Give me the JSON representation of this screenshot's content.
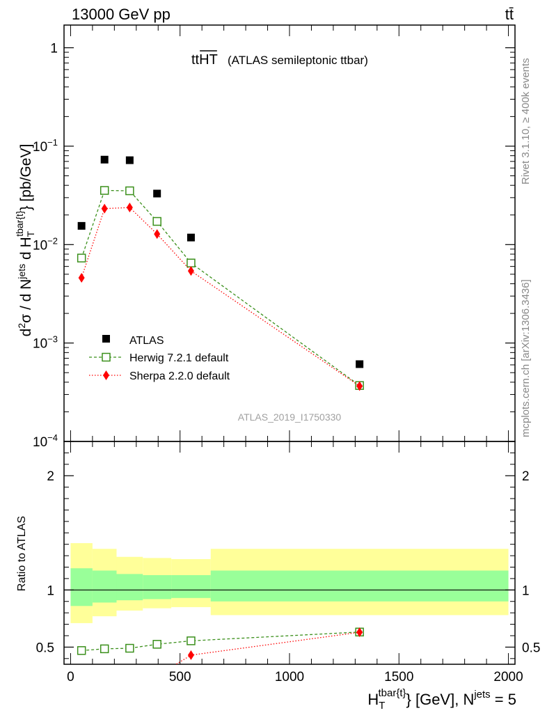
{
  "header": {
    "left": "13000 GeV pp",
    "right": "tt̄"
  },
  "side_labels": {
    "rivet": "Rivet 3.1.10, ≥ 400k events",
    "mcplots": "mcplots.cern.ch [arXiv:1306.3436]"
  },
  "colors": {
    "atlas": "#000000",
    "herwig": "#3a8f1a",
    "sherpa": "#ff0000",
    "band_outer": "#ffff99",
    "band_inner": "#99ff99",
    "ref_line": "#000000",
    "watermark": "#a0a0a0"
  },
  "chart_data": [
    {
      "type": "scatter",
      "panel": "main",
      "title_main": "tt",
      "title_over": "HT",
      "title_sub": "(ATLAS semileptonic ttbar)",
      "watermark": "ATLAS_2019_I1750330",
      "ylabel": "d²σ / d Nʲᵉᵗˢ d H_T^{tbar{t}} [pb/GeV]",
      "yscale": "log",
      "ylim": [
        0.0001,
        1.7
      ],
      "xlim": [
        -30,
        2030
      ],
      "y_ticks": [
        {
          "value": 1,
          "base": "1",
          "exp": ""
        },
        {
          "value": 0.1,
          "base": "10",
          "exp": "−1"
        },
        {
          "value": 0.01,
          "base": "10",
          "exp": "−2"
        },
        {
          "value": 0.001,
          "base": "10",
          "exp": "−3"
        },
        {
          "value": 0.0001,
          "base": "10",
          "exp": "−4"
        }
      ],
      "legend_position": "bottom-left",
      "series": [
        {
          "name": "ATLAS",
          "marker": "filled-square",
          "x": [
            50,
            155,
            270,
            395,
            550,
            1320
          ],
          "y": [
            0.0155,
            0.073,
            0.072,
            0.033,
            0.0118,
            0.00061
          ]
        },
        {
          "name": "Herwig 7.2.1 default",
          "marker": "open-square",
          "line": "dashed",
          "x": [
            50,
            155,
            270,
            395,
            550,
            1320
          ],
          "y": [
            0.0073,
            0.0355,
            0.0352,
            0.0172,
            0.0065,
            0.00037
          ]
        },
        {
          "name": "Sherpa 2.2.0 default",
          "marker": "filled-diamond",
          "line": "dotted",
          "x": [
            50,
            155,
            270,
            395,
            550,
            1320
          ],
          "y": [
            0.0046,
            0.0232,
            0.0238,
            0.0128,
            0.0054,
            0.000365
          ]
        }
      ]
    },
    {
      "type": "scatter",
      "panel": "ratio",
      "ylabel": "Ratio to ATLAS",
      "xlabel": "H_T^{tbar{t}} [GeV], N^{jets} = 5",
      "ylim": [
        0.35,
        2.3
      ],
      "xlim": [
        -30,
        2030
      ],
      "y_ticks": [
        0.5,
        1,
        2
      ],
      "x_ticks": [
        0,
        500,
        1000,
        1500,
        2000
      ],
      "reference": 1,
      "bands": {
        "x_edges": [
          0,
          100,
          210,
          330,
          460,
          640,
          2000
        ],
        "outer_low": [
          0.71,
          0.77,
          0.82,
          0.84,
          0.85,
          0.78
        ],
        "outer_high": [
          1.41,
          1.36,
          1.29,
          1.28,
          1.27,
          1.36
        ],
        "inner_low": [
          0.86,
          0.89,
          0.91,
          0.92,
          0.93,
          0.9
        ],
        "inner_high": [
          1.19,
          1.17,
          1.14,
          1.13,
          1.13,
          1.17
        ]
      },
      "series": [
        {
          "name": "Herwig 7.2.1 default",
          "marker": "open-square",
          "line": "dashed",
          "x": [
            50,
            155,
            270,
            395,
            550,
            1320
          ],
          "y": [
            0.47,
            0.485,
            0.49,
            0.525,
            0.555,
            0.632
          ]
        },
        {
          "name": "Sherpa 2.2.0 default",
          "marker": "filled-diamond",
          "line": "dotted",
          "x": [
            440,
            550,
            1320
          ],
          "y": [
            0.3,
            0.43,
            0.63
          ]
        }
      ]
    }
  ]
}
